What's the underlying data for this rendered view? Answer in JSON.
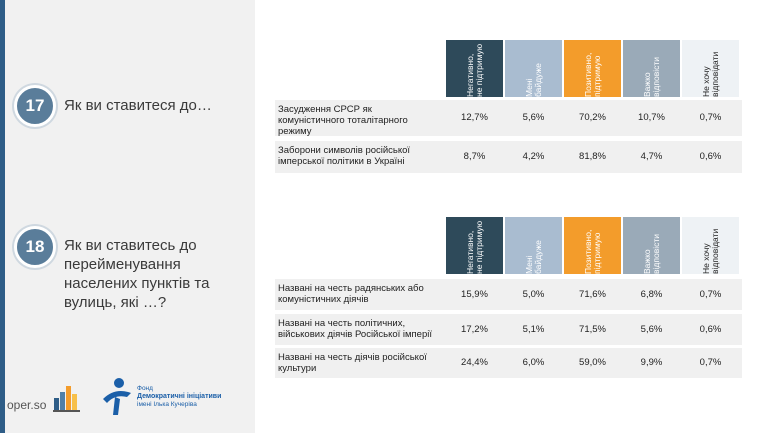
{
  "colors": {
    "negative": "#2e4a5a",
    "indifferent": "#a9bcd0",
    "positive": "#f39c2b",
    "hard": "#9aaab8",
    "refuse": "#eef2f5"
  },
  "headers": [
    "Негативно, не підтримую",
    "Мені байдуже",
    "Позитивно, підтримую",
    "Важко відповісти",
    "Не хочу відповідати"
  ],
  "q17": {
    "number": "17",
    "question": "Як ви ставитеся до…",
    "rows": [
      {
        "label": "Засудження СРСР як комуністичного тоталітарного режиму",
        "values": [
          "12,7%",
          "5,6%",
          "70,2%",
          "10,7%",
          "0,7%"
        ]
      },
      {
        "label": "Заборони символів російської імперської політики в Україні",
        "values": [
          "8,7%",
          "4,2%",
          "81,8%",
          "4,7%",
          "0,6%"
        ]
      }
    ]
  },
  "q18": {
    "number": "18",
    "question": "Як ви ставитесь до перейменування населених пунктів та вулиць, які …?",
    "rows": [
      {
        "label": "Названі на честь радянських або комуністичних діячів",
        "values": [
          "15,9%",
          "5,0%",
          "71,6%",
          "6,8%",
          "0,7%"
        ]
      },
      {
        "label": "Названі на честь політичних, військових діячів Російської імперії",
        "values": [
          "17,2%",
          "5,1%",
          "71,5%",
          "5,6%",
          "0,6%"
        ]
      },
      {
        "label": "Названі на честь діячів російської культури",
        "values": [
          "24,4%",
          "6,0%",
          "59,0%",
          "9,9%",
          "0,7%"
        ]
      }
    ]
  },
  "footer": {
    "site": "oper.so",
    "fund_line1": "Фонд",
    "fund_line2": "Демократичні ініціативи",
    "fund_line3": "імені Ілька Кучеріва"
  },
  "icons": {
    "logo": "building-bars-icon",
    "fund": "fund-figure-icon"
  }
}
